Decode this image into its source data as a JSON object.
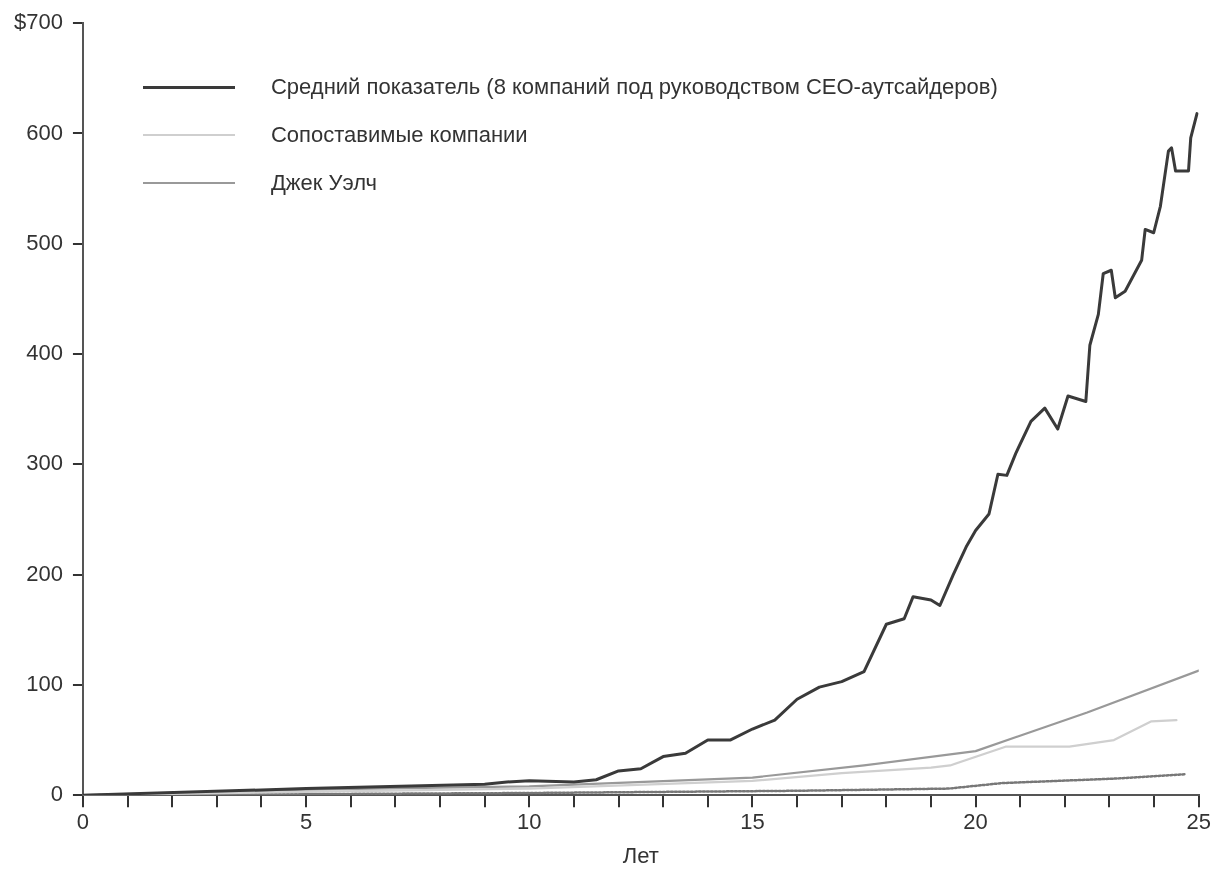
{
  "chart_data": {
    "type": "line",
    "xlabel": "Лет",
    "x": [
      0,
      5,
      9,
      9.5,
      10,
      11,
      11.5,
      12,
      12.5,
      13,
      13.5,
      14,
      14.5,
      15,
      15.5,
      16,
      16.5,
      17,
      17.5,
      18,
      18.4,
      18.6,
      19,
      19.2,
      19.5,
      19.8,
      20,
      20.3,
      20.5,
      20.7,
      20.9,
      21.24,
      21.55,
      21.84,
      22.07,
      22.47,
      22.56,
      22.75,
      22.86,
      23.04,
      23.13,
      23.35,
      23.72,
      23.8,
      23.99,
      24.14,
      24.32,
      24.39,
      24.48,
      24.77,
      24.82,
      24.96
    ],
    "series": [
      {
        "name": "Средний показатель (8 компаний под руководством CEO-аутсайдеров)",
        "color": "#3a3a3a",
        "line_style": "solid",
        "values": [
          0,
          6,
          10,
          12,
          13,
          12,
          14,
          22,
          24,
          35,
          38,
          50,
          50,
          60,
          68,
          87,
          98,
          103,
          112,
          155,
          160,
          180,
          177,
          172,
          200,
          226,
          240,
          255,
          291,
          290,
          310,
          339,
          351,
          332,
          362,
          357,
          408,
          436,
          473,
          476,
          451,
          457,
          485,
          513,
          510,
          534,
          584,
          587,
          566,
          566,
          596,
          618
        ]
      },
      {
        "name": "Сопоставимые компании",
        "color": "#cfcfcf",
        "line_style": "solid",
        "x": [
          0,
          5,
          10,
          15,
          17,
          19,
          19.43,
          20.67,
          22.1,
          23.1,
          23.94,
          24.5
        ],
        "values": [
          0,
          3,
          6,
          13,
          20,
          25,
          27,
          44,
          44,
          50,
          67,
          68
        ]
      },
      {
        "color": "#777777",
        "line_style": "dotted",
        "x": [
          0,
          10,
          16,
          19.4,
          20.6,
          23.1,
          24.7
        ],
        "values": [
          0,
          2,
          4,
          6,
          11,
          15,
          19
        ]
      },
      {
        "name": "Джек Уэлч",
        "color": "#999999",
        "line_style": "solid",
        "x": [
          0,
          5,
          10,
          15,
          17.5,
          20,
          22.5,
          25
        ],
        "values": [
          0,
          5,
          8,
          16,
          27,
          40,
          75,
          113
        ]
      }
    ],
    "xlim": [
      0,
      25
    ],
    "xticks": [
      0,
      {
        "value": 1,
        "label": null
      },
      {
        "value": 2,
        "label": null
      },
      {
        "value": 3,
        "label": null
      },
      {
        "value": 4,
        "label": null
      },
      5,
      {
        "value": 6,
        "label": null
      },
      {
        "value": 7,
        "label": null
      },
      {
        "value": 8,
        "label": null
      },
      {
        "value": 9,
        "label": null
      },
      10,
      {
        "value": 11,
        "label": null
      },
      {
        "value": 12,
        "label": null
      },
      {
        "value": 13,
        "label": null
      },
      {
        "value": 14,
        "label": null
      },
      15,
      {
        "value": 16,
        "label": null
      },
      {
        "value": 17,
        "label": null
      },
      {
        "value": 18,
        "label": null
      },
      {
        "value": 19,
        "label": null
      },
      20,
      {
        "value": 21,
        "label": null
      },
      {
        "value": 22,
        "label": null
      },
      {
        "value": 23,
        "label": null
      },
      {
        "value": 24,
        "label": null
      },
      25
    ],
    "ylim": [
      0,
      700
    ],
    "yticks": [
      0,
      100,
      200,
      300,
      400,
      500,
      600,
      {
        "value": 700,
        "label": "$700"
      }
    ],
    "grid": false,
    "legend": "top left",
    "marker": "none"
  }
}
